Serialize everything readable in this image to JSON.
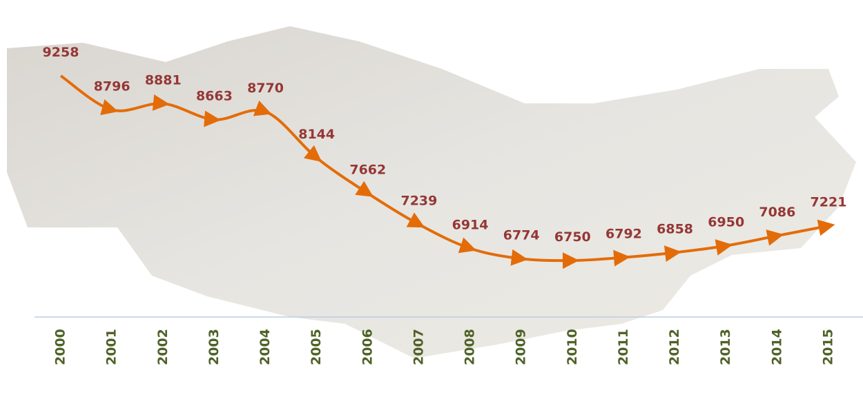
{
  "chart_data": {
    "type": "line",
    "categories": [
      "2000",
      "2001",
      "2002",
      "2003",
      "2004",
      "2005",
      "2006",
      "2007",
      "2008",
      "2009",
      "2010",
      "2011",
      "2012",
      "2013",
      "2014",
      "2015"
    ],
    "values": [
      9258,
      8796,
      8881,
      8663,
      8770,
      8144,
      7662,
      7239,
      6914,
      6774,
      6750,
      6792,
      6858,
      6950,
      7086,
      7221
    ],
    "color": "#e36c09",
    "label_color": "#953735",
    "category_color": "#4f6228"
  }
}
